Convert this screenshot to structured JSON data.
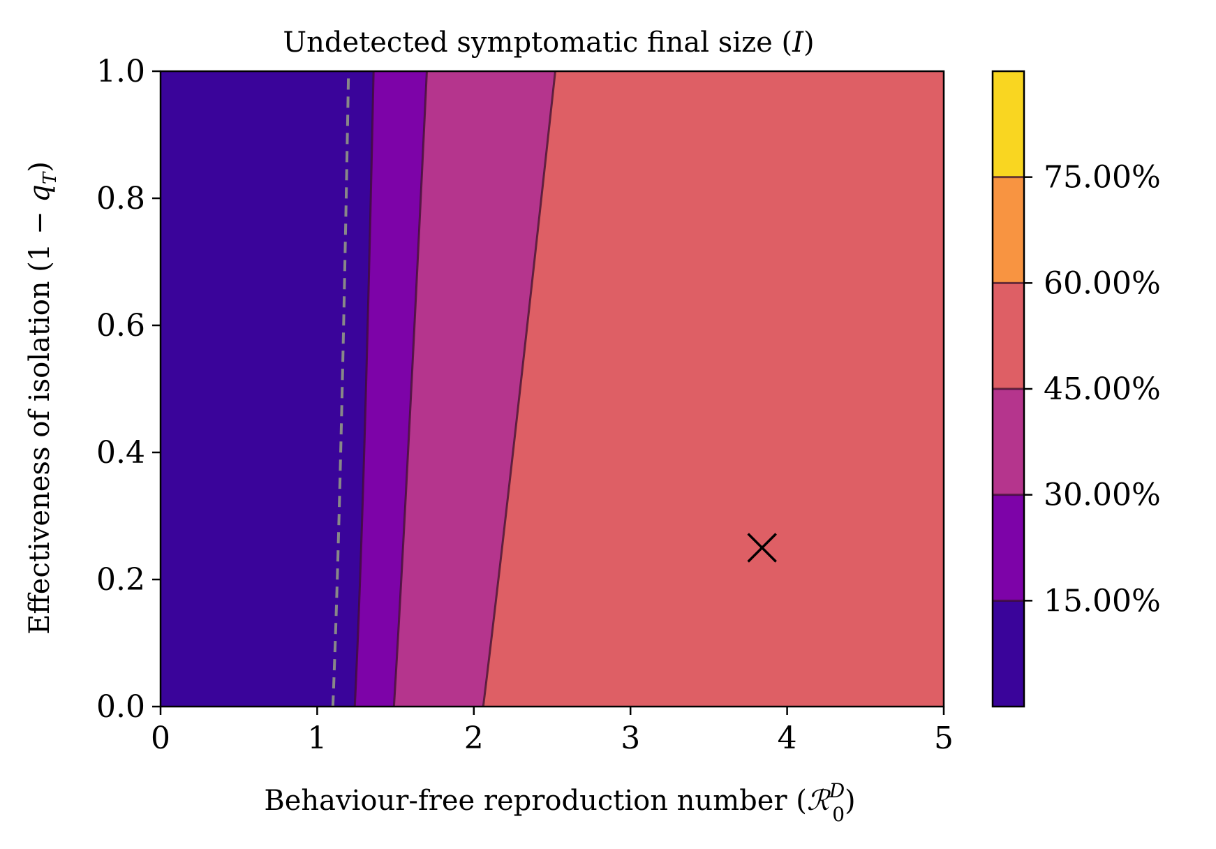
{
  "chart_data": {
    "type": "contourf",
    "title": "Undetected symptomatic final size (",
    "title_var": "I",
    "title_close": ")",
    "xlabel": "Behaviour-free reproduction number (",
    "xlabel_sym": "ℛ",
    "xlabel_sub": "0",
    "xlabel_sup": "D",
    "xlabel_close": ")",
    "ylabel": "Effectiveness of isolation (1 − ",
    "ylabel_var": "q",
    "ylabel_sub": "T",
    "ylabel_close": ")",
    "xlim": [
      0,
      5
    ],
    "ylim": [
      0,
      1
    ],
    "xticks": [
      0,
      1,
      2,
      3,
      4,
      5
    ],
    "xtick_labels": [
      "0",
      "1",
      "2",
      "3",
      "4",
      "5"
    ],
    "yticks": [
      0.0,
      0.2,
      0.4,
      0.6,
      0.8,
      1.0
    ],
    "ytick_labels": [
      "0.0",
      "0.2",
      "0.4",
      "0.6",
      "0.8",
      "1.0"
    ],
    "levels": [
      0,
      0.15,
      0.3,
      0.45,
      0.6,
      0.75,
      0.9
    ],
    "level_colors": [
      "#3a049a",
      "#7d03a8",
      "#b5358d",
      "#de5f65",
      "#f89441",
      "#f9d621"
    ],
    "contour_lines": [
      {
        "level": 0.15,
        "points": [
          [
            1.24,
            0.0
          ],
          [
            1.3,
            0.4
          ],
          [
            1.36,
            1.0
          ]
        ]
      },
      {
        "level": 0.3,
        "points": [
          [
            1.49,
            0.0
          ],
          [
            1.58,
            0.4
          ],
          [
            1.7,
            1.0
          ]
        ]
      },
      {
        "level": 0.45,
        "points": [
          [
            2.06,
            0.0
          ],
          [
            2.25,
            0.4
          ],
          [
            2.52,
            1.0
          ]
        ]
      }
    ],
    "threshold_line": {
      "style": "dashed",
      "color": "#888888",
      "points": [
        [
          1.1,
          0.0
        ],
        [
          1.15,
          0.4
        ],
        [
          1.2,
          1.0
        ]
      ]
    },
    "marker": {
      "symbol": "x",
      "x": 3.84,
      "y": 0.25,
      "color": "#000000"
    },
    "colorbar": {
      "ticks": [
        0.15,
        0.3,
        0.45,
        0.6,
        0.75
      ],
      "tick_labels": [
        "15.00%",
        "30.00%",
        "45.00%",
        "60.00%",
        "75.00%"
      ],
      "range": [
        0,
        0.9
      ]
    }
  }
}
